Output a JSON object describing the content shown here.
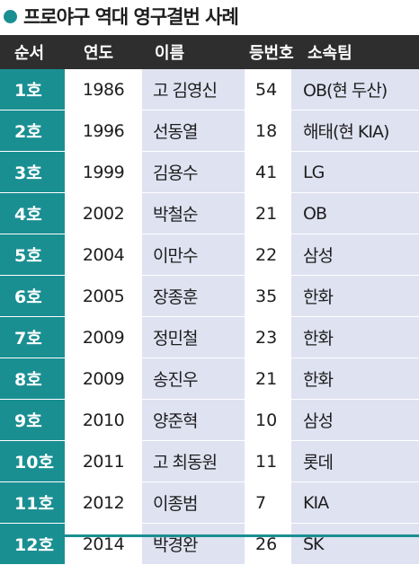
{
  "title": "프로야구 역대 영구결번 사례",
  "headers": {
    "order": "순서",
    "year": "연도",
    "name": "이름",
    "number": "등번호",
    "team": "소속팀"
  },
  "rows": [
    {
      "order": "1호",
      "year": "1986",
      "name": "고 김영신",
      "number": "54",
      "team": "OB(현 두산)"
    },
    {
      "order": "2호",
      "year": "1996",
      "name": "선동열",
      "number": "18",
      "team": "해태(현 KIA)"
    },
    {
      "order": "3호",
      "year": "1999",
      "name": "김용수",
      "number": "41",
      "team": "LG"
    },
    {
      "order": "4호",
      "year": "2002",
      "name": "박철순",
      "number": "21",
      "team": "OB"
    },
    {
      "order": "5호",
      "year": "2004",
      "name": "이만수",
      "number": "22",
      "team": "삼성"
    },
    {
      "order": "6호",
      "year": "2005",
      "name": "장종훈",
      "number": "35",
      "team": "한화"
    },
    {
      "order": "7호",
      "year": "2009",
      "name": "정민철",
      "number": "23",
      "team": "한화"
    },
    {
      "order": "8호",
      "year": "2009",
      "name": "송진우",
      "number": "21",
      "team": "한화"
    },
    {
      "order": "9호",
      "year": "2010",
      "name": "양준혁",
      "number": "10",
      "team": "삼성"
    },
    {
      "order": "10호",
      "year": "2011",
      "name": "고 최동원",
      "number": "11",
      "team": "롯데"
    },
    {
      "order": "11호",
      "year": "2012",
      "name": "이종범",
      "number": "7",
      "team": "KIA"
    },
    {
      "order": "12호",
      "year": "2014",
      "name": "박경완",
      "number": "26",
      "team": "SK"
    }
  ],
  "colors": {
    "accent": "#1a8f92",
    "header_bg": "#2e2e2e",
    "stripe": "#dfe2f1"
  }
}
